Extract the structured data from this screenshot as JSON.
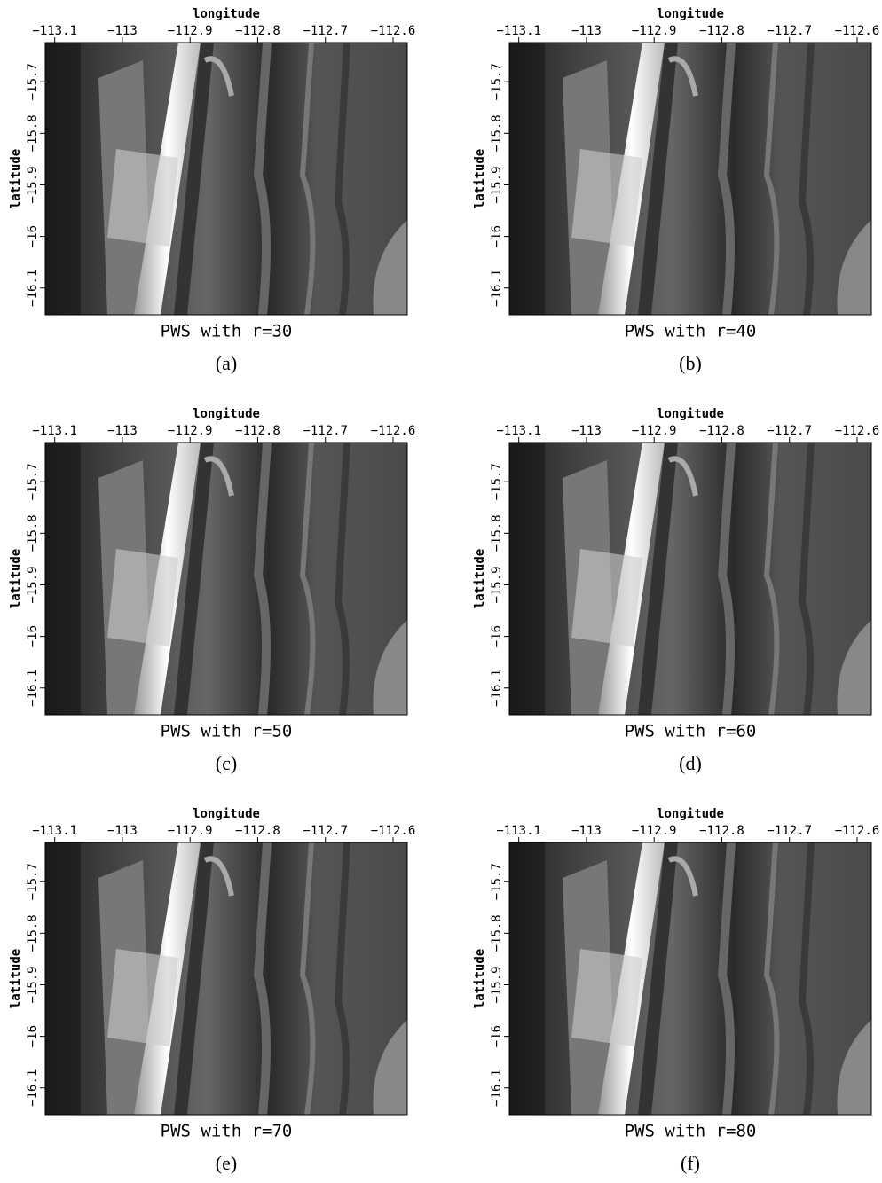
{
  "chart_data": [
    {
      "type": "image",
      "title": "PWS with r=30",
      "caption": "(a)",
      "xlabel": "longitude",
      "ylabel": "latitude",
      "xlim": [
        -113.114,
        -112.579
      ],
      "ylim": [
        -16.152,
        -15.624
      ],
      "xticks": [
        {
          "value": -113.1,
          "label": "−113.1"
        },
        {
          "value": -113,
          "label": "−113"
        },
        {
          "value": -112.9,
          "label": "−112.9"
        },
        {
          "value": -112.8,
          "label": "−112.8"
        },
        {
          "value": -112.7,
          "label": "−112.7"
        },
        {
          "value": -112.6,
          "label": "−112.6"
        }
      ],
      "yticks": [
        {
          "value": -15.7,
          "label": "−15.7"
        },
        {
          "value": -15.8,
          "label": "−15.8"
        },
        {
          "value": -15.9,
          "label": "−15.9"
        },
        {
          "value": -16,
          "label": "−16"
        },
        {
          "value": -16.1,
          "label": "−16.1"
        }
      ]
    },
    {
      "type": "image",
      "title": "PWS with r=40",
      "caption": "(b)",
      "xlabel": "longitude",
      "ylabel": "latitude",
      "xlim": [
        -113.114,
        -112.579
      ],
      "ylim": [
        -16.152,
        -15.624
      ],
      "xticks": [
        {
          "value": -113.1,
          "label": "−113.1"
        },
        {
          "value": -113,
          "label": "−113"
        },
        {
          "value": -112.9,
          "label": "−112.9"
        },
        {
          "value": -112.8,
          "label": "−112.8"
        },
        {
          "value": -112.7,
          "label": "−112.7"
        },
        {
          "value": -112.6,
          "label": "−112.6"
        }
      ],
      "yticks": [
        {
          "value": -15.7,
          "label": "−15.7"
        },
        {
          "value": -15.8,
          "label": "−15.8"
        },
        {
          "value": -15.9,
          "label": "−15.9"
        },
        {
          "value": -16,
          "label": "−16"
        },
        {
          "value": -16.1,
          "label": "−16.1"
        }
      ]
    },
    {
      "type": "image",
      "title": "PWS with r=50",
      "caption": "(c)",
      "xlabel": "longitude",
      "ylabel": "latitude",
      "xlim": [
        -113.114,
        -112.579
      ],
      "ylim": [
        -16.152,
        -15.624
      ],
      "xticks": [
        {
          "value": -113.1,
          "label": "−113.1"
        },
        {
          "value": -113,
          "label": "−113"
        },
        {
          "value": -112.9,
          "label": "−112.9"
        },
        {
          "value": -112.8,
          "label": "−112.8"
        },
        {
          "value": -112.7,
          "label": "−112.7"
        },
        {
          "value": -112.6,
          "label": "−112.6"
        }
      ],
      "yticks": [
        {
          "value": -15.7,
          "label": "−15.7"
        },
        {
          "value": -15.8,
          "label": "−15.8"
        },
        {
          "value": -15.9,
          "label": "−15.9"
        },
        {
          "value": -16,
          "label": "−16"
        },
        {
          "value": -16.1,
          "label": "−16.1"
        }
      ]
    },
    {
      "type": "image",
      "title": "PWS with r=60",
      "caption": "(d)",
      "xlabel": "longitude",
      "ylabel": "latitude",
      "xlim": [
        -113.114,
        -112.579
      ],
      "ylim": [
        -16.152,
        -15.624
      ],
      "xticks": [
        {
          "value": -113.1,
          "label": "−113.1"
        },
        {
          "value": -113,
          "label": "−113"
        },
        {
          "value": -112.9,
          "label": "−112.9"
        },
        {
          "value": -112.8,
          "label": "−112.8"
        },
        {
          "value": -112.7,
          "label": "−112.7"
        },
        {
          "value": -112.6,
          "label": "−112.6"
        }
      ],
      "yticks": [
        {
          "value": -15.7,
          "label": "−15.7"
        },
        {
          "value": -15.8,
          "label": "−15.8"
        },
        {
          "value": -15.9,
          "label": "−15.9"
        },
        {
          "value": -16,
          "label": "−16"
        },
        {
          "value": -16.1,
          "label": "−16.1"
        }
      ]
    },
    {
      "type": "image",
      "title": "PWS with r=70",
      "caption": "(e)",
      "xlabel": "longitude",
      "ylabel": "latitude",
      "xlim": [
        -113.114,
        -112.579
      ],
      "ylim": [
        -16.152,
        -15.624
      ],
      "xticks": [
        {
          "value": -113.1,
          "label": "−113.1"
        },
        {
          "value": -113,
          "label": "−113"
        },
        {
          "value": -112.9,
          "label": "−112.9"
        },
        {
          "value": -112.8,
          "label": "−112.8"
        },
        {
          "value": -112.7,
          "label": "−112.7"
        },
        {
          "value": -112.6,
          "label": "−112.6"
        }
      ],
      "yticks": [
        {
          "value": -15.7,
          "label": "−15.7"
        },
        {
          "value": -15.8,
          "label": "−15.8"
        },
        {
          "value": -15.9,
          "label": "−15.9"
        },
        {
          "value": -16,
          "label": "−16"
        },
        {
          "value": -16.1,
          "label": "−16.1"
        }
      ]
    },
    {
      "type": "image",
      "title": "PWS with r=80",
      "caption": "(f)",
      "xlabel": "longitude",
      "ylabel": "latitude",
      "xlim": [
        -113.114,
        -112.579
      ],
      "ylim": [
        -16.152,
        -15.624
      ],
      "xticks": [
        {
          "value": -113.1,
          "label": "−113.1"
        },
        {
          "value": -113,
          "label": "−113"
        },
        {
          "value": -112.9,
          "label": "−112.9"
        },
        {
          "value": -112.8,
          "label": "−112.8"
        },
        {
          "value": -112.7,
          "label": "−112.7"
        },
        {
          "value": -112.6,
          "label": "−112.6"
        }
      ],
      "yticks": [
        {
          "value": -15.7,
          "label": "−15.7"
        },
        {
          "value": -15.8,
          "label": "−15.8"
        },
        {
          "value": -15.9,
          "label": "−15.9"
        },
        {
          "value": -16,
          "label": "−16"
        },
        {
          "value": -16.1,
          "label": "−16.1"
        }
      ]
    }
  ]
}
